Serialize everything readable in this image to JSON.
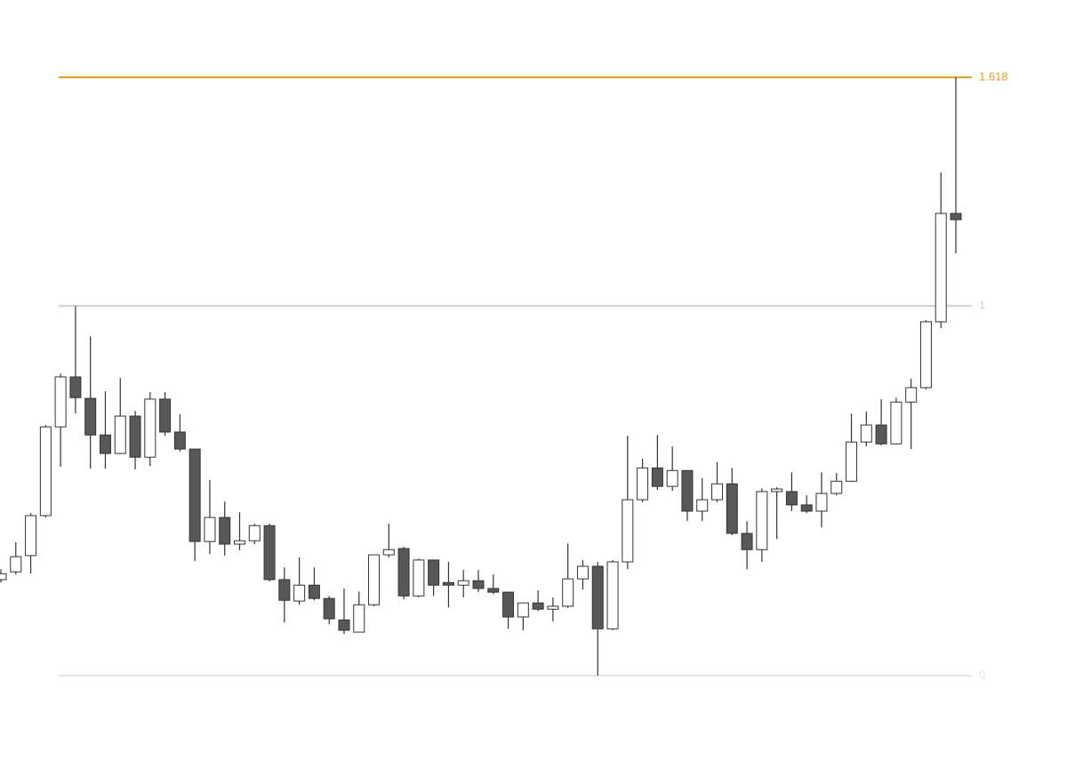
{
  "chart_data": {
    "type": "candlestick",
    "open": [
      0.26,
      0.281,
      0.325,
      0.433,
      0.673,
      0.808,
      0.75,
      0.651,
      0.601,
      0.702,
      0.591,
      0.748,
      0.659,
      0.613,
      0.363,
      0.428,
      0.356,
      0.365,
      0.406,
      0.26,
      0.202,
      0.245,
      0.209,
      0.151,
      0.118,
      0.192,
      0.327,
      0.344,
      0.216,
      0.313,
      0.252,
      0.245,
      0.257,
      0.236,
      0.226,
      0.159,
      0.197,
      0.18,
      0.188,
      0.262,
      0.296,
      0.127,
      0.308,
      0.476,
      0.562,
      0.512,
      0.555,
      0.445,
      0.476,
      0.519,
      0.385,
      0.341,
      0.498,
      0.498,
      0.462,
      0.445,
      0.493,
      0.526,
      0.632,
      0.678,
      0.627,
      0.74,
      0.779,
      0.957,
      1.25
    ],
    "high": [
      0.288,
      0.361,
      0.44,
      0.678,
      0.817,
      1.0,
      0.918,
      0.769,
      0.805,
      0.716,
      0.767,
      0.767,
      0.707,
      0.613,
      0.529,
      0.471,
      0.442,
      0.411,
      0.411,
      0.293,
      0.32,
      0.293,
      0.216,
      0.236,
      0.228,
      0.327,
      0.411,
      0.349,
      0.317,
      0.313,
      0.308,
      0.286,
      0.286,
      0.274,
      0.228,
      0.197,
      0.231,
      0.212,
      0.358,
      0.313,
      0.308,
      0.313,
      0.649,
      0.587,
      0.651,
      0.62,
      0.555,
      0.534,
      0.577,
      0.562,
      0.418,
      0.507,
      0.51,
      0.55,
      0.488,
      0.55,
      0.548,
      0.709,
      0.714,
      0.748,
      0.752,
      0.803,
      0.962,
      1.361,
      1.618
    ],
    "low": [
      0.252,
      0.274,
      0.276,
      0.428,
      0.565,
      0.709,
      0.56,
      0.56,
      0.601,
      0.558,
      0.567,
      0.649,
      0.606,
      0.31,
      0.329,
      0.325,
      0.339,
      0.356,
      0.255,
      0.144,
      0.192,
      0.204,
      0.139,
      0.113,
      0.118,
      0.188,
      0.32,
      0.207,
      0.212,
      0.216,
      0.185,
      0.212,
      0.226,
      0.221,
      0.127,
      0.123,
      0.175,
      0.147,
      0.183,
      0.233,
      0,
      0.123,
      0.288,
      0.469,
      0.502,
      0.5,
      0.418,
      0.418,
      0.469,
      0.38,
      0.288,
      0.308,
      0.37,
      0.445,
      0.44,
      0.401,
      0.488,
      0.524,
      0.62,
      0.623,
      0.625,
      0.613,
      0.774,
      0.94,
      1.142
    ],
    "close": [
      0.276,
      0.322,
      0.433,
      0.673,
      0.808,
      0.752,
      0.651,
      0.601,
      0.702,
      0.591,
      0.748,
      0.659,
      0.613,
      0.363,
      0.428,
      0.356,
      0.365,
      0.406,
      0.26,
      0.204,
      0.245,
      0.209,
      0.154,
      0.123,
      0.192,
      0.327,
      0.341,
      0.216,
      0.313,
      0.245,
      0.245,
      0.257,
      0.236,
      0.226,
      0.159,
      0.197,
      0.18,
      0.188,
      0.262,
      0.296,
      0.127,
      0.308,
      0.476,
      0.562,
      0.512,
      0.555,
      0.445,
      0.476,
      0.519,
      0.385,
      0.341,
      0.498,
      0.505,
      0.462,
      0.445,
      0.493,
      0.526,
      0.632,
      0.678,
      0.627,
      0.74,
      0.779,
      0.957,
      1.25,
      1.233
    ],
    "up_color": "#ffffff",
    "down_color": "#585858",
    "ylim": [
      -0.252,
      1.827
    ],
    "yticks": [
      0,
      1,
      1.618
    ],
    "level_colors": [
      "#e2e2e2",
      "#cfcfcf",
      "#e0a126"
    ]
  }
}
